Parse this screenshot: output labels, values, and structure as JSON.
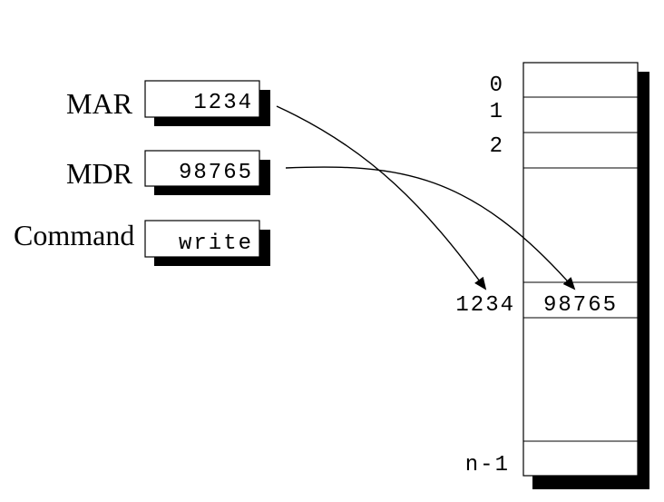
{
  "registers": {
    "mar": {
      "label": "MAR",
      "value": "1234"
    },
    "mdr": {
      "label": "MDR",
      "value": "98765"
    },
    "command": {
      "label": "Command",
      "value": "write"
    }
  },
  "memory": {
    "addresses": [
      "0",
      "1",
      "2"
    ],
    "target_address": "1234",
    "target_value": "98765",
    "last_address": "n-1"
  }
}
